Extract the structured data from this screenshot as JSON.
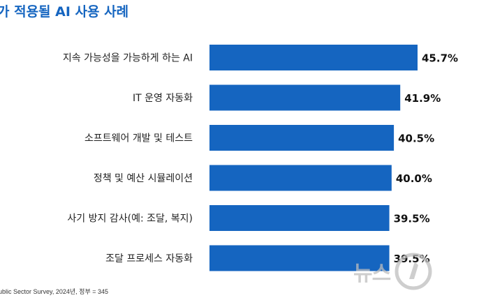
{
  "title": "가 적용될 AI 사용 사례",
  "chart_data": {
    "type": "bar",
    "orientation": "horizontal",
    "categories": [
      "지속 가능성을 가능하게 하는 AI",
      "IT 운영 자동화",
      "소프트웨어 개발 및 테스트",
      "정책 및 예산 시뮬레이션",
      "사기 방지 감사(예: 조달, 복지)",
      "조달 프로세스 자동화"
    ],
    "values": [
      45.7,
      41.9,
      40.5,
      40.0,
      39.5,
      39.5
    ],
    "value_labels": [
      "45.7%",
      "41.9%",
      "40.5%",
      "40.0%",
      "39.5%",
      "39.5%"
    ],
    "xlim": [
      0,
      45.7
    ],
    "bar_color": "#1565c0",
    "grid": false
  },
  "source": "ublic Sector Survey, 2024년, 정부 = 345",
  "watermark": {
    "text": "뉴스",
    "logo": "news1-logo",
    "color": "#c4c4c4"
  }
}
